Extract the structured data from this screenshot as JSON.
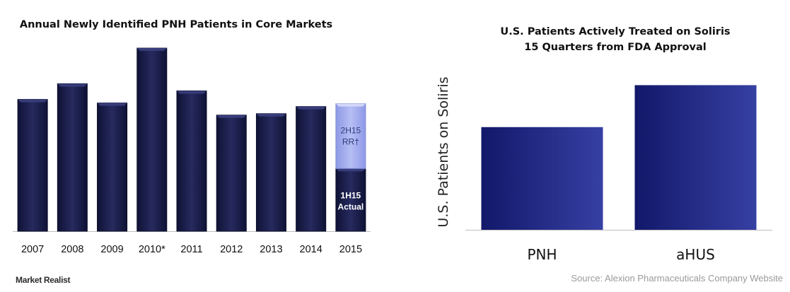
{
  "chart_data": [
    {
      "type": "bar",
      "title": "Annual Newly Identified PNH Patients in Core Markets",
      "categories": [
        "2007",
        "2008",
        "2009",
        "2010*",
        "2011",
        "2012",
        "2013",
        "2014",
        "2015"
      ],
      "series": [
        {
          "name": "1H15 Actual",
          "values": [
            185,
            207,
            180,
            257,
            197,
            163,
            165,
            175,
            88
          ]
        },
        {
          "name": "2H15 RR†",
          "values": [
            0,
            0,
            0,
            0,
            0,
            0,
            0,
            0,
            91
          ]
        }
      ],
      "stacked": true,
      "ylim": [
        0,
        265
      ],
      "y_ticks_shown": false,
      "grid": false,
      "legend": "none",
      "segment_labels": {
        "lower": [
          "1H15",
          "Actual"
        ],
        "upper": [
          "2H15",
          "RR†"
        ]
      },
      "colors": {
        "bar": "#1f2350",
        "upper": "#a7b0ee",
        "upper_text": "#2d3d7a"
      }
    },
    {
      "type": "bar",
      "title": "U.S. Patients Actively Treated on Soliris",
      "subtitle": "15 Quarters from FDA Approval",
      "categories": [
        "PNH",
        "aHUS"
      ],
      "values": [
        71,
        100
      ],
      "ylabel": "U.S. Patients on Soliris",
      "ylim": [
        0,
        110
      ],
      "y_ticks_shown": false,
      "grid": false,
      "legend": "none",
      "colors": {
        "dark": "#161c70",
        "light": "#313a9a"
      }
    }
  ],
  "footer": {
    "logo": "Market Realist",
    "source": "Source: Alexion Pharmaceuticals  Company Website"
  }
}
